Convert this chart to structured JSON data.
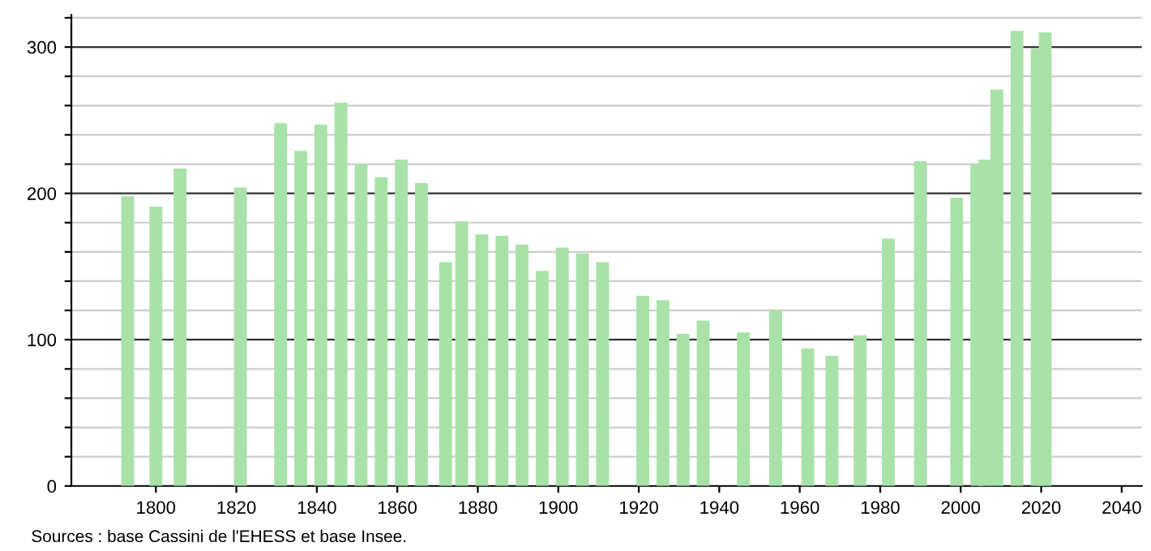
{
  "chart_data": {
    "type": "bar",
    "x": [
      1793,
      1800,
      1806,
      1821,
      1831,
      1836,
      1841,
      1846,
      1851,
      1856,
      1861,
      1866,
      1872,
      1876,
      1881,
      1886,
      1891,
      1896,
      1901,
      1906,
      1911,
      1921,
      1926,
      1931,
      1936,
      1946,
      1954,
      1962,
      1968,
      1975,
      1982,
      1990,
      1999,
      2004,
      2006,
      2009,
      2014,
      2019,
      2021
    ],
    "series": [
      {
        "color": "#a8e2a8",
        "values": [
          198,
          191,
          217,
          204,
          248,
          229,
          247,
          262,
          220,
          211,
          223,
          207,
          153,
          181,
          172,
          171,
          165,
          147,
          163,
          159,
          153,
          130,
          127,
          104,
          113,
          105,
          120,
          94,
          89,
          103,
          169,
          222,
          197,
          220,
          223,
          271,
          311,
          299,
          310
        ]
      }
    ],
    "xlim": [
      1779,
      2045
    ],
    "ylim": [
      0,
      322
    ],
    "xticks": [
      1800,
      1820,
      1840,
      1860,
      1880,
      1900,
      1920,
      1940,
      1960,
      1980,
      2000,
      2020,
      2040
    ],
    "yticks": [
      0,
      {
        "value": 20,
        "label": null
      },
      {
        "value": 40,
        "label": null
      },
      {
        "value": 60,
        "label": null
      },
      {
        "value": 80,
        "label": null
      },
      100,
      {
        "value": 120,
        "label": null
      },
      {
        "value": 140,
        "label": null
      },
      {
        "value": 160,
        "label": null
      },
      {
        "value": 180,
        "label": null
      },
      200,
      {
        "value": 220,
        "label": null
      },
      {
        "value": 240,
        "label": null
      },
      {
        "value": 260,
        "label": null
      },
      {
        "value": 280,
        "label": null
      },
      300,
      {
        "value": 320,
        "label": null
      }
    ],
    "grid": "y",
    "annotations": [
      "Sources : base Cassini de l'EHESS et base Insee."
    ]
  }
}
